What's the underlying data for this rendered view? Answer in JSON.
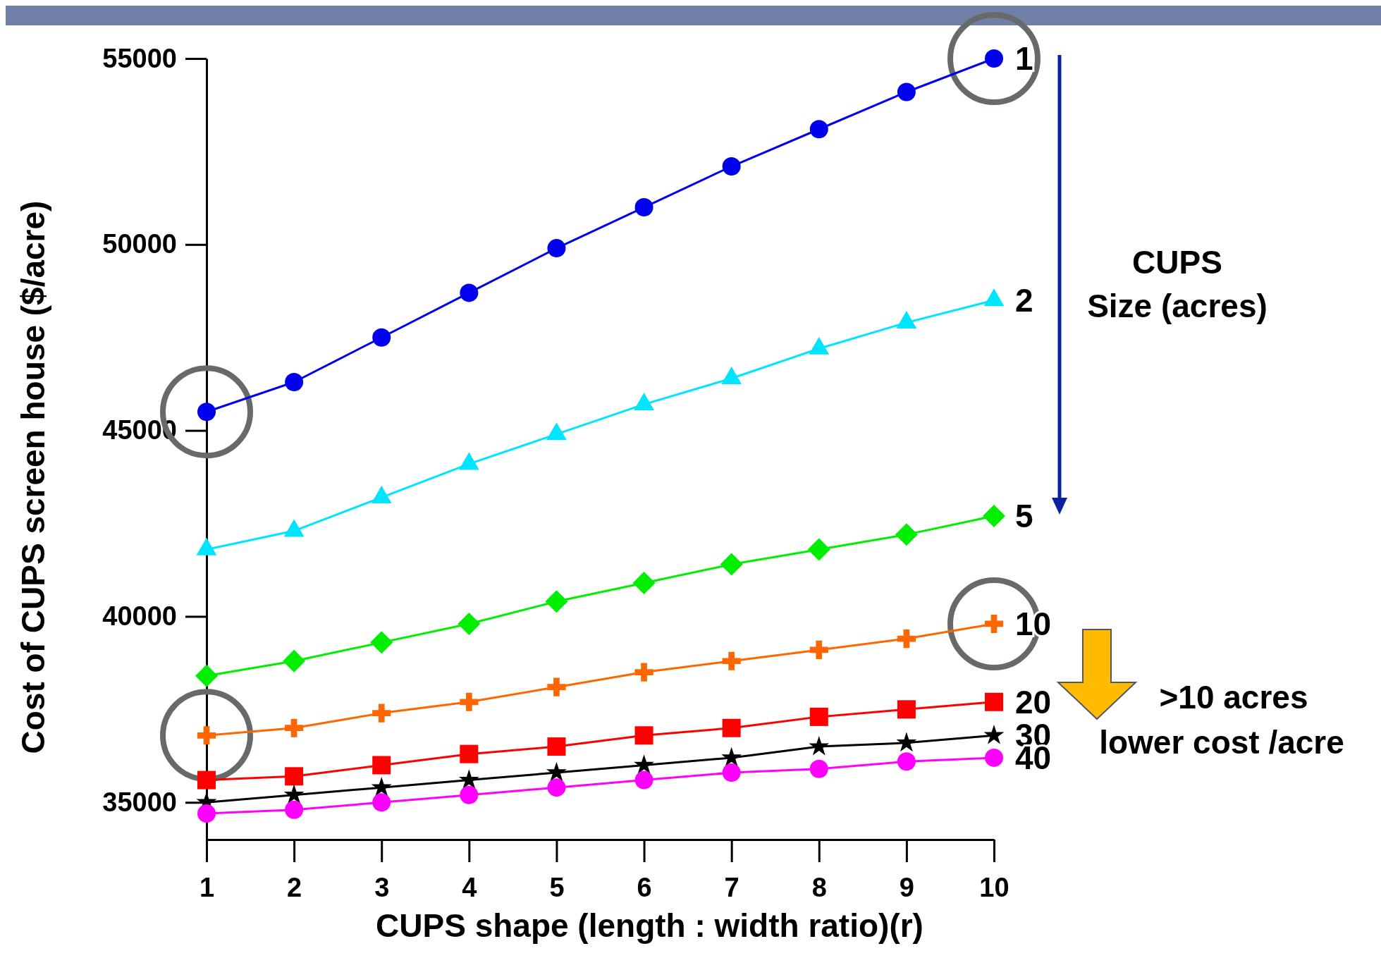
{
  "chart_data": {
    "type": "line",
    "xlabel": "CUPS shape (length : width ratio)(r)",
    "ylabel": "Cost of CUPS screen house ($/acre)",
    "legend_title": "CUPS Size (acres)",
    "x": [
      1,
      2,
      3,
      4,
      5,
      6,
      7,
      8,
      9,
      10
    ],
    "xlim": [
      1,
      10
    ],
    "xticks": [
      1,
      2,
      3,
      4,
      5,
      6,
      7,
      8,
      9,
      10
    ],
    "ylim": [
      34000,
      55000
    ],
    "yticks": [
      35000,
      40000,
      45000,
      50000,
      55000
    ],
    "grid": false,
    "legend": false,
    "line_style": "solid",
    "series": [
      {
        "name": "1",
        "color": "#0000ee",
        "marker": "circle",
        "values": [
          45500,
          46300,
          47500,
          48700,
          49900,
          51000,
          52100,
          53100,
          54100,
          55000
        ]
      },
      {
        "name": "2",
        "color": "#00e5ff",
        "marker": "triangle",
        "values": [
          41800,
          42300,
          43200,
          44100,
          44900,
          45700,
          46400,
          47200,
          47900,
          48500
        ]
      },
      {
        "name": "5",
        "color": "#00ee00",
        "marker": "diamond",
        "values": [
          38400,
          38800,
          39300,
          39800,
          40400,
          40900,
          41400,
          41800,
          42200,
          42700
        ]
      },
      {
        "name": "10",
        "color": "#ff6600",
        "marker": "cross",
        "values": [
          36800,
          37000,
          37400,
          37700,
          38100,
          38500,
          38800,
          39100,
          39400,
          39800
        ]
      },
      {
        "name": "20",
        "color": "#ff0000",
        "marker": "square",
        "values": [
          35600,
          35700,
          36000,
          36300,
          36500,
          36800,
          37000,
          37300,
          37500,
          37700
        ]
      },
      {
        "name": "30",
        "color": "#000000",
        "marker": "star",
        "values": [
          35000,
          35200,
          35400,
          35600,
          35800,
          36000,
          36200,
          36500,
          36600,
          36800
        ]
      },
      {
        "name": "40",
        "color": "#ff00ff",
        "marker": "circle",
        "values": [
          34700,
          34800,
          35000,
          35200,
          35400,
          35600,
          35800,
          35900,
          36100,
          36200
        ]
      }
    ],
    "annotations": [
      ">10 acres",
      "lower cost /acre"
    ]
  }
}
